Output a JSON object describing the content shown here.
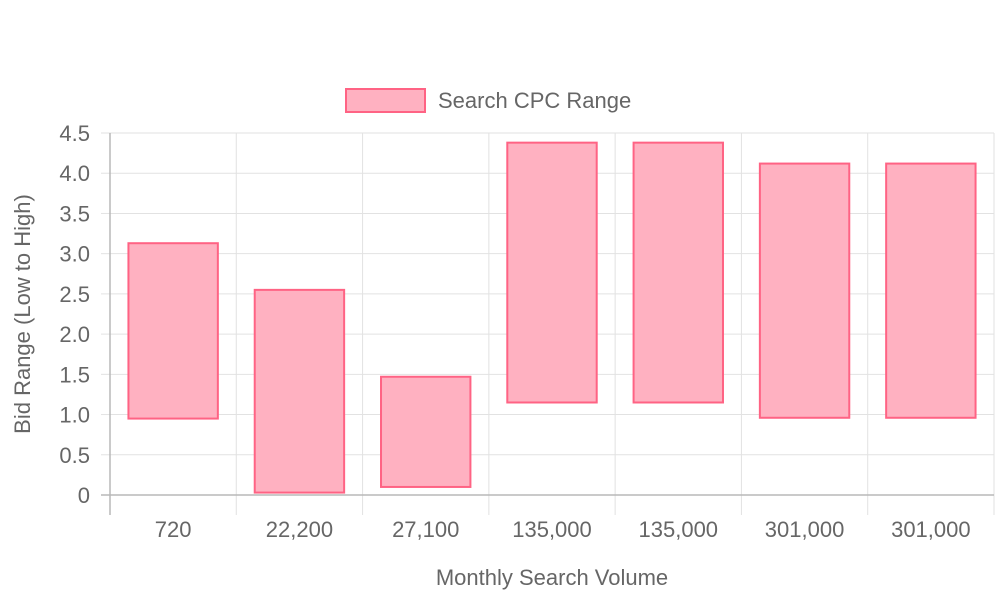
{
  "chart_data": {
    "type": "bar",
    "subtype": "floating-range",
    "categories": [
      "720",
      "22,200",
      "27,100",
      "135,000",
      "135,000",
      "301,000",
      "301,000"
    ],
    "series": [
      {
        "name": "Search CPC Range",
        "ranges": [
          [
            0.95,
            3.13
          ],
          [
            0.03,
            2.55
          ],
          [
            0.1,
            1.47
          ],
          [
            1.15,
            4.38
          ],
          [
            1.15,
            4.38
          ],
          [
            0.96,
            4.12
          ],
          [
            0.96,
            4.12
          ]
        ],
        "fill_color": "#ffb1c1",
        "border_color": "#ff6384"
      }
    ],
    "xlabel": "Monthly Search Volume",
    "ylabel": "Bid Range (Low to High)",
    "ylim": [
      0,
      4.5
    ],
    "y_ticks": [
      "0",
      "0.5",
      "1.0",
      "1.5",
      "2.0",
      "2.5",
      "3.0",
      "3.5",
      "4.0",
      "4.5"
    ],
    "grid": true,
    "legend_position": "top"
  }
}
